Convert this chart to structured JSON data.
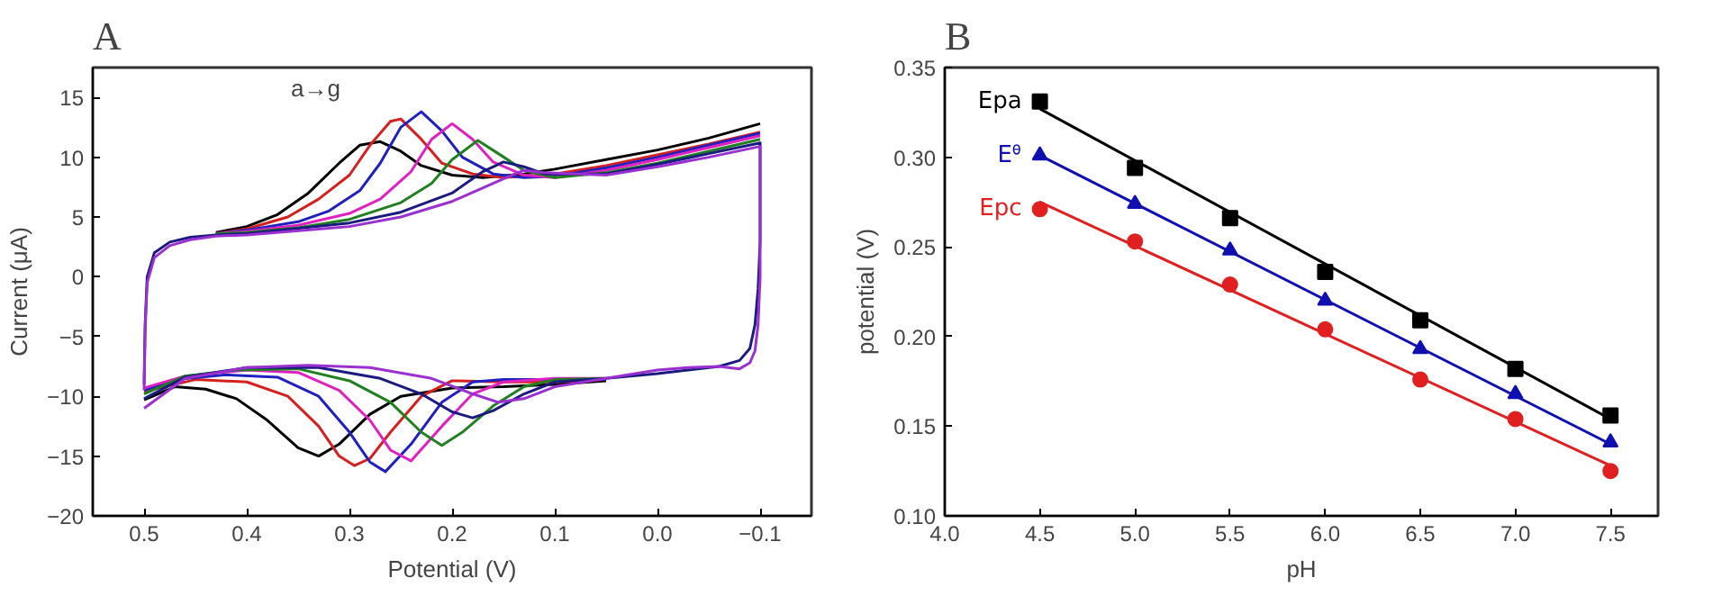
{
  "chart_data": [
    {
      "type": "line",
      "title": "A",
      "xlabel": "Potential (V)",
      "ylabel": "Current (μA)",
      "annotations": [
        "a→g"
      ],
      "xlim": [
        0.55,
        -0.15
      ],
      "ylim": [
        -20,
        17.5
      ],
      "xticks": [
        0.5,
        0.4,
        0.3,
        0.2,
        0.1,
        {
          "value": 0,
          "label": "0.0"
        },
        -0.1
      ],
      "yticks": [
        -20,
        -15,
        -10,
        -5,
        0,
        5,
        10,
        15
      ],
      "series": [
        {
          "color": "#000000",
          "x": [
            0.43,
            0.4,
            0.37,
            0.34,
            0.31,
            0.29,
            0.27,
            0.25,
            0.23,
            0.2,
            0.17,
            0.13,
            0.1,
            0.05,
            0,
            -0.05,
            -0.1
          ],
          "values": [
            3.7,
            4.2,
            5.2,
            7,
            9.5,
            11,
            11.3,
            10.5,
            9.3,
            8.5,
            8.3,
            8.6,
            9,
            9.8,
            10.6,
            11.6,
            12.8
          ]
        },
        {
          "color": "#000000",
          "x": [
            0.05,
            0.1,
            0.15,
            0.2,
            0.25,
            0.28,
            0.31,
            0.33,
            0.35,
            0.38,
            0.41,
            0.44,
            0.47,
            0.5
          ],
          "values": [
            -8.7,
            -9,
            -9.2,
            -9.3,
            -10,
            -11.5,
            -14,
            -15,
            -14.3,
            -12,
            -10.2,
            -9.4,
            -9.2,
            -10.3
          ]
        },
        {
          "color": "#d62020",
          "x": [
            0.43,
            0.4,
            0.36,
            0.33,
            0.3,
            0.28,
            0.26,
            0.25,
            0.23,
            0.21,
            0.18,
            0.15,
            0.1,
            0.05,
            0,
            -0.05,
            -0.1
          ],
          "values": [
            3.6,
            4,
            5,
            6.5,
            8.5,
            11,
            13,
            13.2,
            11.5,
            9.5,
            8.6,
            8.3,
            8.6,
            9.3,
            10.2,
            11.1,
            12.1
          ]
        },
        {
          "color": "#d62020",
          "x": [
            0.05,
            0.1,
            0.15,
            0.2,
            0.23,
            0.26,
            0.28,
            0.295,
            0.31,
            0.33,
            0.36,
            0.4,
            0.45,
            0.5
          ],
          "values": [
            -8.6,
            -8.8,
            -8.8,
            -8.7,
            -10,
            -13,
            -15.2,
            -15.8,
            -15,
            -12.5,
            -10,
            -8.8,
            -8.6,
            -9.6
          ]
        },
        {
          "color": "#2020c0",
          "x": [
            0.43,
            0.4,
            0.35,
            0.32,
            0.29,
            0.27,
            0.25,
            0.23,
            0.21,
            0.19,
            0.16,
            0.13,
            0.1,
            0.05,
            0,
            -0.05,
            -0.1
          ],
          "values": [
            3.6,
            3.9,
            4.6,
            5.5,
            7.2,
            9.5,
            12.5,
            13.8,
            12.2,
            10,
            8.6,
            8.3,
            8.4,
            9.1,
            10,
            11,
            12
          ]
        },
        {
          "color": "#2020c0",
          "x": [
            0.05,
            0.1,
            0.15,
            0.18,
            0.21,
            0.24,
            0.265,
            0.28,
            0.3,
            0.33,
            0.37,
            0.42,
            0.47,
            0.5
          ],
          "values": [
            -8.6,
            -8.6,
            -8.6,
            -8.8,
            -10.5,
            -14,
            -16.3,
            -15.5,
            -13,
            -10,
            -8.4,
            -8.2,
            -8.6,
            -9.5
          ]
        },
        {
          "color": "#e020c0",
          "x": [
            0.43,
            0.4,
            0.35,
            0.3,
            0.27,
            0.24,
            0.22,
            0.2,
            0.18,
            0.16,
            0.13,
            0.1,
            0.05,
            0,
            -0.05,
            -0.1
          ],
          "values": [
            3.6,
            3.8,
            4.3,
            5.3,
            6.5,
            8.8,
            11.5,
            12.8,
            11.5,
            9.6,
            8.5,
            8.3,
            8.9,
            9.8,
            10.8,
            11.8
          ]
        },
        {
          "color": "#e020c0",
          "x": [
            0.05,
            0.1,
            0.15,
            0.18,
            0.21,
            0.24,
            0.26,
            0.28,
            0.31,
            0.35,
            0.4,
            0.46,
            0.5
          ],
          "values": [
            -8.5,
            -8.5,
            -8.8,
            -9.8,
            -12.5,
            -15.4,
            -14.5,
            -12,
            -9.5,
            -8,
            -7.8,
            -8.3,
            -9.3
          ]
        },
        {
          "color": "#208020",
          "x": [
            0.43,
            0.4,
            0.35,
            0.3,
            0.25,
            0.22,
            0.2,
            0.175,
            0.155,
            0.13,
            0.1,
            0.05,
            0,
            -0.05,
            -0.1
          ],
          "values": [
            3.6,
            3.7,
            4.1,
            4.8,
            6.2,
            7.8,
            9.8,
            11.4,
            10.3,
            8.9,
            8.3,
            8.7,
            9.5,
            10.5,
            11.5
          ]
        },
        {
          "color": "#208020",
          "x": [
            0.05,
            0.1,
            0.13,
            0.16,
            0.19,
            0.21,
            0.23,
            0.26,
            0.3,
            0.35,
            0.41,
            0.46,
            0.5
          ],
          "values": [
            -8.5,
            -8.6,
            -9.2,
            -10.8,
            -13,
            -14.1,
            -13,
            -10.5,
            -8.7,
            -7.7,
            -7.8,
            -8.3,
            -9.8
          ]
        },
        {
          "color": "#1a1a80",
          "x": [
            0.5,
            0.499,
            0.497,
            0.49,
            0.475,
            0.455,
            0.43,
            0.4,
            0.3,
            0.25,
            0.2,
            0.17,
            0.15,
            0.13,
            0.11,
            0.05,
            0,
            -0.05,
            -0.1,
            -0.1,
            -0.1,
            -0.098,
            -0.095,
            -0.09,
            -0.08,
            -0.06,
            -0.03,
            0,
            0.05,
            0.1,
            0.13,
            0.16,
            0.18,
            0.2,
            0.23,
            0.27,
            0.33,
            0.4,
            0.46,
            0.5
          ],
          "values": [
            -9,
            -4,
            0,
            2,
            2.9,
            3.3,
            3.5,
            3.6,
            4.5,
            5.4,
            7,
            8.8,
            9.6,
            9.2,
            8.6,
            8.6,
            9.4,
            10.3,
            11.2,
            8,
            3,
            -1,
            -4,
            -6,
            -7,
            -7.5,
            -7.8,
            -8.1,
            -8.5,
            -8.8,
            -9.8,
            -11.2,
            -11.8,
            -11.3,
            -9.8,
            -8.5,
            -7.6,
            -7.6,
            -8.4,
            -10.2
          ]
        },
        {
          "color": "#9a30d0",
          "x": [
            0.5,
            0.499,
            0.497,
            0.49,
            0.475,
            0.455,
            0.43,
            0.4,
            0.3,
            0.25,
            0.2,
            0.15,
            0.13,
            0.11,
            0.05,
            0,
            -0.05,
            -0.1,
            -0.1,
            -0.1,
            -0.098,
            -0.095,
            -0.09,
            -0.08,
            -0.06,
            -0.03,
            0,
            0.05,
            0.1,
            0.13,
            0.155,
            0.18,
            0.22,
            0.28,
            0.34,
            0.4,
            0.46,
            0.5
          ],
          "values": [
            -9.5,
            -4.5,
            -0.5,
            1.6,
            2.6,
            3.1,
            3.4,
            3.5,
            4.2,
            5,
            6.3,
            8.2,
            8.9,
            8.7,
            8.5,
            9.2,
            10,
            10.9,
            5,
            0,
            -4,
            -6.2,
            -7.2,
            -7.7,
            -7.5,
            -7.6,
            -7.8,
            -8.5,
            -9.2,
            -10.2,
            -10.5,
            -9.8,
            -8.5,
            -7.6,
            -7.4,
            -7.6,
            -8.5,
            -11
          ]
        }
      ]
    },
    {
      "type": "scatter",
      "title": "B",
      "xlabel": "pH",
      "ylabel": "potential (V)",
      "xlim": [
        4.0,
        7.75
      ],
      "ylim": [
        0.1,
        0.35
      ],
      "xticks": [
        {
          "value": 4,
          "label": "4.0"
        },
        4.5,
        {
          "value": 5,
          "label": "5.0"
        },
        5.5,
        {
          "value": 6,
          "label": "6.0"
        },
        6.5,
        {
          "value": 7,
          "label": "7.0"
        },
        7.5
      ],
      "yticks": [
        {
          "value": 0.1,
          "label": "0.10"
        },
        0.15,
        {
          "value": 0.2,
          "label": "0.20"
        },
        0.25,
        {
          "value": 0.3,
          "label": "0.30"
        },
        0.35
      ],
      "x": [
        4.5,
        5.0,
        5.5,
        6.0,
        6.5,
        7.0,
        7.5
      ],
      "series": [
        {
          "name": "Epa",
          "color": "#000000",
          "marker": "square",
          "values": [
            0.331,
            0.294,
            0.266,
            0.236,
            0.209,
            0.182,
            0.156
          ]
        },
        {
          "name": "Eᶿ",
          "color": "#1010b0",
          "marker": "triangle",
          "values": [
            0.301,
            0.274,
            0.248,
            0.22,
            0.193,
            0.168,
            0.141
          ]
        },
        {
          "name": "Epc",
          "color": "#e02020",
          "marker": "circle",
          "values": [
            0.271,
            0.253,
            0.229,
            0.204,
            0.176,
            0.154,
            0.125
          ]
        },
        {
          "type": "line",
          "color": "#000000",
          "x": [
            4.5,
            7.5
          ],
          "values": [
            0.327,
            0.154
          ]
        },
        {
          "type": "line",
          "color": "#1010b0",
          "x": [
            4.5,
            7.5
          ],
          "values": [
            0.301,
            0.14
          ]
        },
        {
          "type": "line",
          "color": "#e02020",
          "x": [
            4.5,
            7.5
          ],
          "values": [
            0.275,
            0.128
          ]
        }
      ]
    }
  ]
}
